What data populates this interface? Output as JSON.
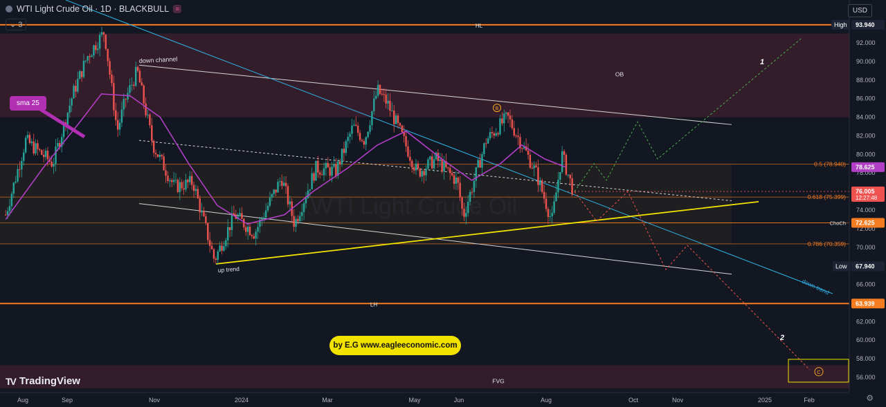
{
  "header": {
    "title": "WTI Light Crude Oil · 1D · BLACKBULL",
    "indicator_count": "3",
    "currency": "USD"
  },
  "branding": {
    "logo_text": "TradingView",
    "credit": "by E.G www.eagleeconomic.com"
  },
  "colors": {
    "background": "#131722",
    "bull": "#26a69a",
    "bear": "#ef5350",
    "sma": "#b03fc6",
    "orange": "#f57c20",
    "yellow": "#f2e200",
    "trend_blue": "#2ea8d9",
    "green_path": "#4caf50",
    "red_path": "#ef5350"
  },
  "chart_data": {
    "type": "candlestick",
    "title": "WTI Light Crude Oil · 1D · BLACKBULL",
    "y_axis": {
      "range": [
        54.8,
        96.0
      ],
      "ticks": [
        "92.000",
        "90.000",
        "88.000",
        "86.000",
        "84.000",
        "82.000",
        "80.000",
        "78.000",
        "76.000",
        "74.000",
        "72.000",
        "70.000",
        "68.000",
        "66.000",
        "64.000",
        "62.000",
        "60.000",
        "58.000",
        "56.000"
      ]
    },
    "x_axis": {
      "tick_labels": [
        {
          "label": "Aug",
          "date": "2023-08-01"
        },
        {
          "label": "Sep",
          "date": "2023-09-01"
        },
        {
          "label": "Nov",
          "date": "2023-11-01"
        },
        {
          "label": "2024",
          "date": "2024-01-01"
        },
        {
          "label": "Mar",
          "date": "2024-03-01"
        },
        {
          "label": "May",
          "date": "2024-05-01"
        },
        {
          "label": "Jun",
          "date": "2024-06-01"
        },
        {
          "label": "Aug",
          "date": "2024-08-01"
        },
        {
          "label": "Oct",
          "date": "2024-10-01"
        },
        {
          "label": "Nov",
          "date": "2024-11-01"
        },
        {
          "label": "2025",
          "date": "2025-01-01"
        },
        {
          "label": "Feb",
          "date": "2025-02-01"
        }
      ]
    },
    "price_path": [
      [
        "2023-07-20",
        73.5
      ],
      [
        "2023-08-03",
        81.5
      ],
      [
        "2023-08-22",
        79.0
      ],
      [
        "2023-09-05",
        86.5
      ],
      [
        "2023-09-15",
        90.5
      ],
      [
        "2023-09-27",
        93.2
      ],
      [
        "2023-10-06",
        82.5
      ],
      [
        "2023-10-12",
        86.0
      ],
      [
        "2023-10-20",
        89.0
      ],
      [
        "2023-10-31",
        81.0
      ],
      [
        "2023-11-15",
        76.5
      ],
      [
        "2023-11-28",
        77.0
      ],
      [
        "2023-12-13",
        68.6
      ],
      [
        "2023-12-27",
        73.5
      ],
      [
        "2024-01-10",
        71.5
      ],
      [
        "2024-01-29",
        77.5
      ],
      [
        "2024-02-07",
        72.5
      ],
      [
        "2024-02-22",
        78.5
      ],
      [
        "2024-03-07",
        78.2
      ],
      [
        "2024-03-19",
        83.0
      ],
      [
        "2024-03-27",
        81.5
      ],
      [
        "2024-04-05",
        86.9
      ],
      [
        "2024-04-12",
        85.5
      ],
      [
        "2024-04-22",
        82.0
      ],
      [
        "2024-05-03",
        78.0
      ],
      [
        "2024-05-16",
        79.5
      ],
      [
        "2024-05-31",
        77.0
      ],
      [
        "2024-06-04",
        73.3
      ],
      [
        "2024-06-20",
        81.5
      ],
      [
        "2024-07-05",
        84.0
      ],
      [
        "2024-07-17",
        80.5
      ],
      [
        "2024-07-25",
        78.0
      ],
      [
        "2024-08-05",
        72.8
      ],
      [
        "2024-08-12",
        80.0
      ],
      [
        "2024-08-20",
        76.0
      ]
    ],
    "sma_25": [
      [
        "2023-07-20",
        73.0
      ],
      [
        "2023-08-15",
        78.5
      ],
      [
        "2023-09-10",
        83.5
      ],
      [
        "2023-09-25",
        86.5
      ],
      [
        "2023-10-15",
        86.3
      ],
      [
        "2023-11-05",
        84.0
      ],
      [
        "2023-11-25",
        79.0
      ],
      [
        "2023-12-15",
        74.5
      ],
      [
        "2024-01-05",
        72.5
      ],
      [
        "2024-01-31",
        73.5
      ],
      [
        "2024-02-20",
        76.0
      ],
      [
        "2024-03-15",
        78.5
      ],
      [
        "2024-04-05",
        81.0
      ],
      [
        "2024-04-25",
        82.5
      ],
      [
        "2024-05-20",
        79.5
      ],
      [
        "2024-06-10",
        77.2
      ],
      [
        "2024-06-30",
        79.0
      ],
      [
        "2024-07-15",
        81.0
      ],
      [
        "2024-07-31",
        79.5
      ],
      [
        "2024-08-15",
        78.6
      ]
    ],
    "levels": [
      {
        "name": "High",
        "value": 93.94,
        "label": "93.940",
        "line_label": "HL",
        "color": "#f57c20"
      },
      {
        "name": "0.5 (78.940)",
        "value": 78.94,
        "color": "#f57c20"
      },
      {
        "name": "SMA",
        "value": 78.625,
        "label": "78.625",
        "color": "#b03fc6"
      },
      {
        "name": "Last",
        "value": 76.005,
        "label": "76.005",
        "countdown": "12:27:48",
        "color": "#ef5350"
      },
      {
        "name": "0.618 (75.399)",
        "value": 75.399,
        "color": "#f57c20"
      },
      {
        "name": "ChoCh",
        "value": 72.625,
        "label": "72.625",
        "color": "#f57c20"
      },
      {
        "name": "0.786 (70.359)",
        "value": 70.359,
        "color": "#f57c20"
      },
      {
        "name": "Low",
        "value": 67.94,
        "label": "67.940",
        "color": "#f57c20"
      },
      {
        "name": "LH",
        "value": 63.939,
        "label": "63.939",
        "line_label": "LH",
        "color": "#f57c20"
      }
    ],
    "zones": [
      {
        "name": "OB",
        "from": 84.0,
        "to": 93.0,
        "color": "#3a1f2c"
      },
      {
        "name": "FVG",
        "from": 54.8,
        "to": 57.3,
        "color": "#3a1f2c"
      },
      {
        "name": "fib-box",
        "from": 70.359,
        "to": 78.94,
        "color": "#2a2420"
      }
    ],
    "annotations": [
      {
        "text": "down channel"
      },
      {
        "text": "up trend"
      },
      {
        "text": "down trend"
      },
      {
        "text": "OB"
      },
      {
        "text": "FVG"
      },
      {
        "text": "1"
      },
      {
        "text": "2"
      },
      {
        "text": "sma 25"
      },
      {
        "text": "B"
      },
      {
        "text": "C"
      }
    ],
    "watermark": "WTI Light Crude Oil"
  }
}
